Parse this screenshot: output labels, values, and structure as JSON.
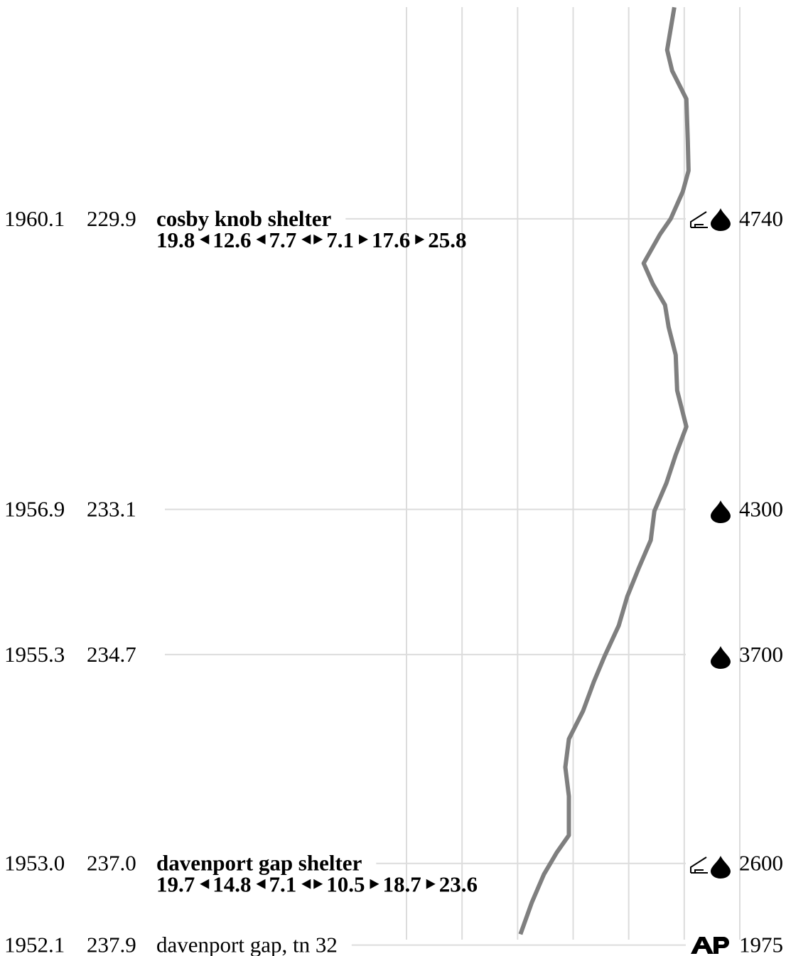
{
  "waypoints": [
    {
      "nobo": "1960.1",
      "sobo": "229.9",
      "name": "cosby knob shelter",
      "elevation": "4740",
      "distances": [
        "19.8",
        "12.6",
        "7.7",
        "7.1",
        "17.6",
        "25.8"
      ]
    },
    {
      "nobo": "1956.9",
      "sobo": "233.1",
      "elevation": "4300"
    },
    {
      "nobo": "1955.3",
      "sobo": "234.7",
      "elevation": "3700"
    },
    {
      "nobo": "1953.0",
      "sobo": "237.0",
      "name": "davenport gap shelter",
      "elevation": "2600",
      "distances": [
        "19.7",
        "14.8",
        "7.1",
        "10.5",
        "18.7",
        "23.6"
      ]
    },
    {
      "nobo": "1952.1",
      "sobo": "237.9",
      "name": "davenport gap, tn 32",
      "elevation": "1975"
    }
  ],
  "profile": {
    "miles": [
      227.57,
      228.04,
      228.27,
      228.58,
      229.05,
      229.37,
      229.6,
      229.9,
      230.07,
      230.39,
      230.62,
      230.85,
      231.09,
      231.4,
      231.79,
      232.19,
      232.5,
      232.81,
      233.12,
      233.44,
      233.75,
      234.06,
      234.38,
      234.72,
      235.0,
      235.32,
      235.63,
      235.94,
      236.26,
      236.69,
      236.88,
      237.12,
      237.43,
      237.78
    ],
    "elevation": [
      4821,
      4692,
      4782,
      5038,
      5064,
      5077,
      4974,
      4756,
      4564,
      4269,
      4436,
      4654,
      4718,
      4846,
      4872,
      5038,
      4846,
      4679,
      4462,
      4397,
      4179,
      3974,
      3821,
      3564,
      3372,
      3179,
      2923,
      2859,
      2923,
      2923,
      2705,
      2474,
      2256,
      2051
    ],
    "xlim": [
      0,
      6000
    ],
    "xticks": [
      0,
      1000,
      2000,
      3000,
      4000,
      5000,
      6000
    ],
    "ylim": [
      227.49,
      238.02
    ],
    "color": "#7f7f7f"
  }
}
